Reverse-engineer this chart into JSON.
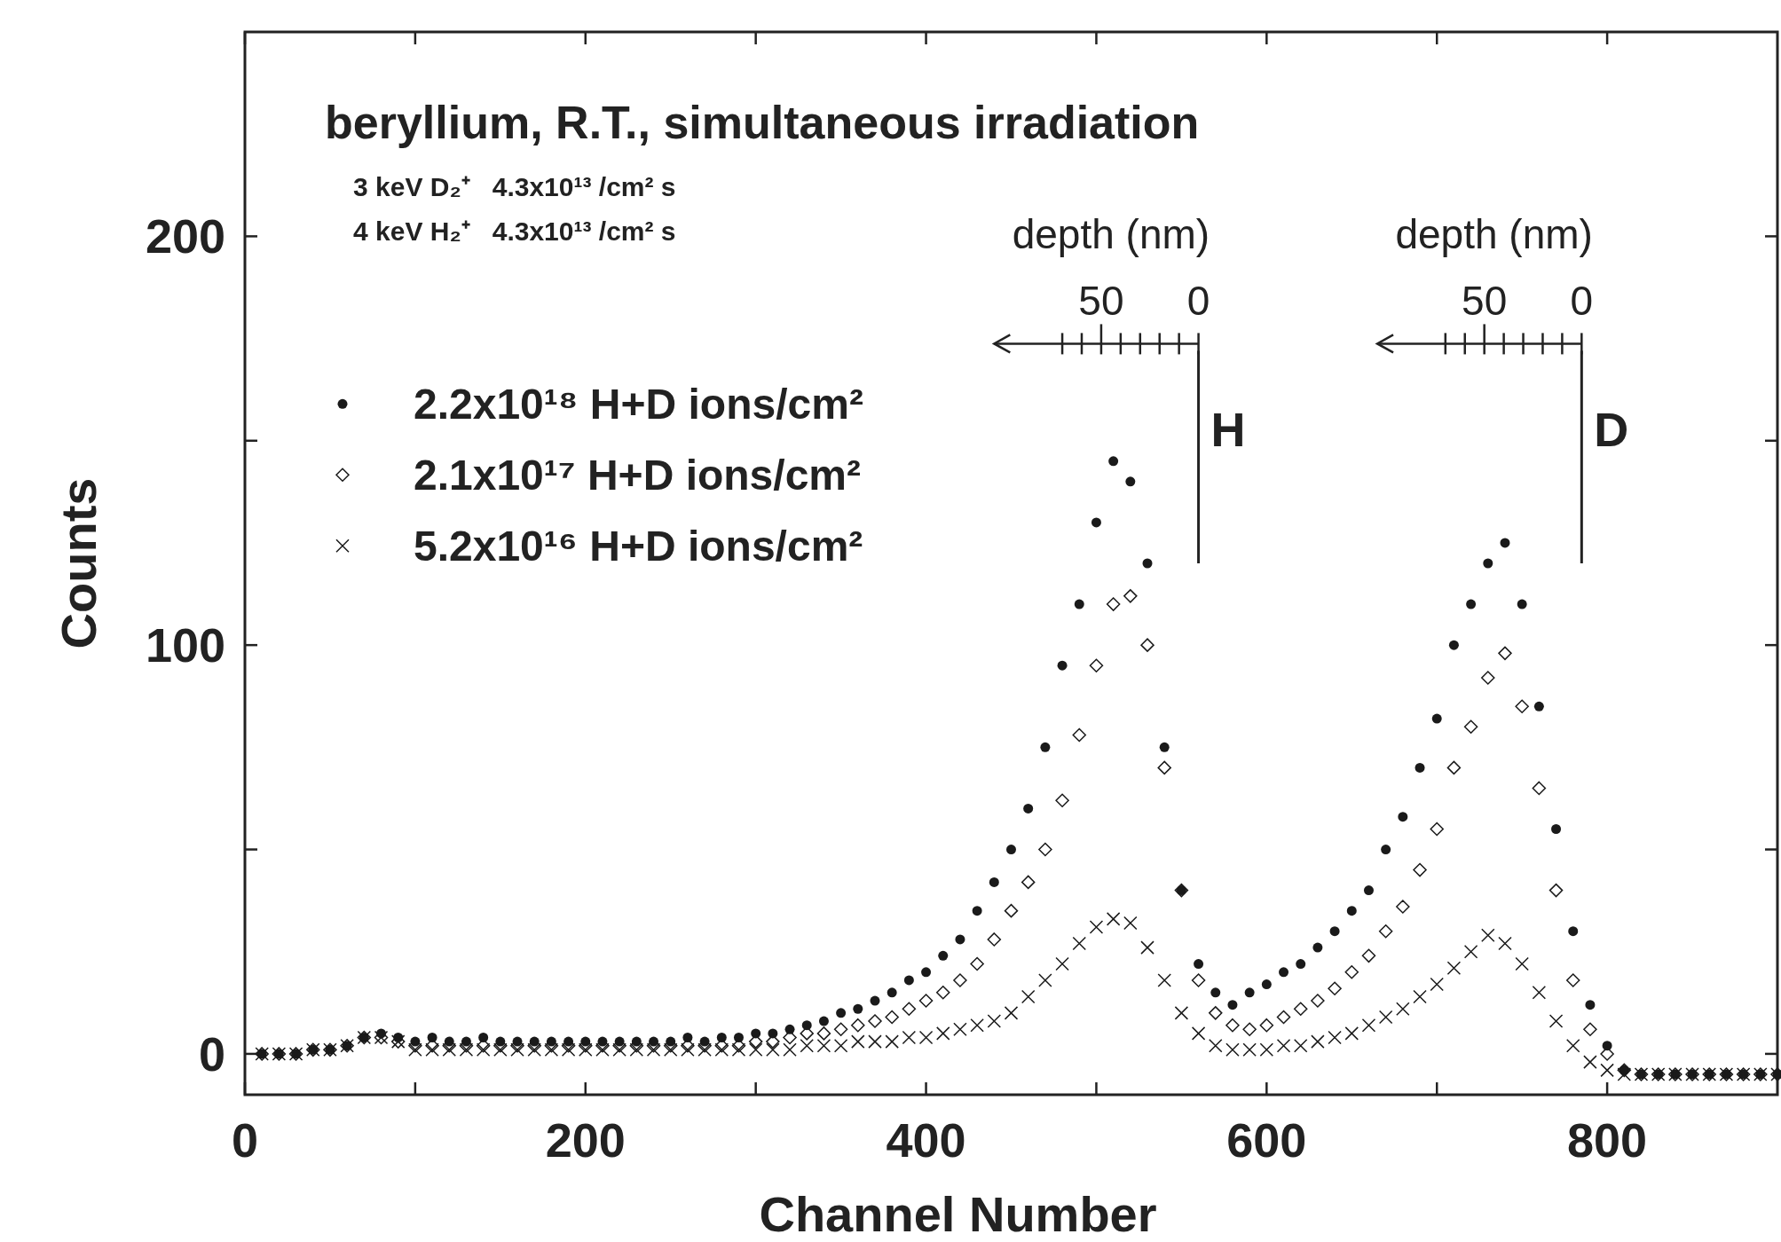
{
  "chart_data": {
    "type": "scatter",
    "title": "beryllium, R.T., simultaneous irradiation",
    "xlabel": "Channel Number",
    "ylabel": "Counts",
    "xlim": [
      0,
      900
    ],
    "ylim": [
      -10,
      250
    ],
    "xticks": [
      0,
      {
        "value": 100,
        "label": null
      },
      200,
      {
        "value": 300,
        "label": null
      },
      400,
      {
        "value": 500,
        "label": null
      },
      600,
      {
        "value": 700,
        "label": null
      },
      800
    ],
    "yticks": [
      0,
      {
        "value": 50,
        "label": null
      },
      100,
      {
        "value": 150,
        "label": null
      },
      200
    ],
    "grid": false,
    "legend": "left",
    "annotations": [
      "3 keV D₂⁺   4.3x10¹³ /cm² s",
      "4 keV H₂⁺   4.3x10¹³ /cm² s",
      "depth (nm)",
      "50",
      "0",
      "depth (nm)",
      "50",
      "0"
    ],
    "ref_lines": [
      {
        "axis": "x",
        "value": 560,
        "label": "H"
      },
      {
        "axis": "x",
        "value": 785,
        "label": "D"
      }
    ],
    "x": [
      10,
      20,
      30,
      40,
      50,
      60,
      70,
      80,
      90,
      100,
      110,
      120,
      130,
      140,
      150,
      160,
      170,
      180,
      190,
      200,
      210,
      220,
      230,
      240,
      250,
      260,
      270,
      280,
      290,
      300,
      310,
      320,
      330,
      340,
      350,
      360,
      370,
      380,
      390,
      400,
      410,
      420,
      430,
      440,
      450,
      460,
      470,
      480,
      490,
      500,
      510,
      520,
      530,
      540,
      550,
      560,
      570,
      580,
      590,
      600,
      610,
      620,
      630,
      640,
      650,
      660,
      670,
      680,
      690,
      700,
      710,
      720,
      730,
      740,
      750,
      760,
      770,
      780,
      790,
      800,
      810,
      820,
      830,
      840,
      850,
      860,
      870,
      880,
      890,
      900
    ],
    "series": [
      {
        "name": "2.2x10¹⁸  H+D ions/cm²",
        "color": "#1a1a1a",
        "marker": "circle",
        "values": [
          0,
          0,
          0,
          1,
          1,
          2,
          4,
          5,
          4,
          3,
          4,
          3,
          3,
          4,
          3,
          3,
          3,
          3,
          3,
          3,
          3,
          3,
          3,
          3,
          3,
          4,
          3,
          4,
          4,
          5,
          5,
          6,
          7,
          8,
          10,
          11,
          13,
          15,
          18,
          20,
          24,
          28,
          35,
          42,
          50,
          60,
          75,
          95,
          110,
          130,
          145,
          140,
          120,
          75,
          40,
          22,
          15,
          12,
          15,
          17,
          20,
          22,
          26,
          30,
          35,
          40,
          50,
          58,
          70,
          82,
          100,
          110,
          120,
          125,
          110,
          85,
          55,
          30,
          12,
          2,
          -4,
          -5,
          -5,
          -5,
          -5,
          -5,
          -5,
          -5,
          -5,
          -5
        ]
      },
      {
        "name": "2.1x10¹⁷  H+D ions/cm²",
        "color": "#1a1a1a",
        "marker": "diamond",
        "values": [
          0,
          0,
          0,
          1,
          1,
          2,
          4,
          4,
          3,
          2,
          2,
          2,
          2,
          2,
          2,
          2,
          2,
          2,
          2,
          2,
          2,
          2,
          2,
          2,
          2,
          2,
          2,
          2,
          2,
          3,
          3,
          4,
          5,
          5,
          6,
          7,
          8,
          9,
          11,
          13,
          15,
          18,
          22,
          28,
          35,
          42,
          50,
          62,
          78,
          95,
          110,
          112,
          100,
          70,
          40,
          18,
          10,
          7,
          6,
          7,
          9,
          11,
          13,
          16,
          20,
          24,
          30,
          36,
          45,
          55,
          70,
          80,
          92,
          98,
          85,
          65,
          40,
          18,
          6,
          0,
          -4,
          -5,
          -5,
          -5,
          -5,
          -5,
          -5,
          -5,
          -5,
          -5
        ]
      },
      {
        "name": "5.2x10¹⁶  H+D ions/cm²",
        "color": "#1a1a1a",
        "marker": "cross",
        "values": [
          0,
          0,
          0,
          1,
          1,
          2,
          4,
          4,
          3,
          1,
          1,
          1,
          1,
          1,
          1,
          1,
          1,
          1,
          1,
          1,
          1,
          1,
          1,
          1,
          1,
          1,
          1,
          1,
          1,
          1,
          1,
          1,
          2,
          2,
          2,
          3,
          3,
          3,
          4,
          4,
          5,
          6,
          7,
          8,
          10,
          14,
          18,
          22,
          27,
          31,
          33,
          32,
          26,
          18,
          10,
          5,
          2,
          1,
          1,
          1,
          2,
          2,
          3,
          4,
          5,
          7,
          9,
          11,
          14,
          17,
          21,
          25,
          29,
          27,
          22,
          15,
          8,
          2,
          -2,
          -4,
          -5,
          -5,
          -5,
          -5,
          -5,
          -5,
          -5,
          -5,
          -5,
          -5
        ]
      }
    ]
  }
}
